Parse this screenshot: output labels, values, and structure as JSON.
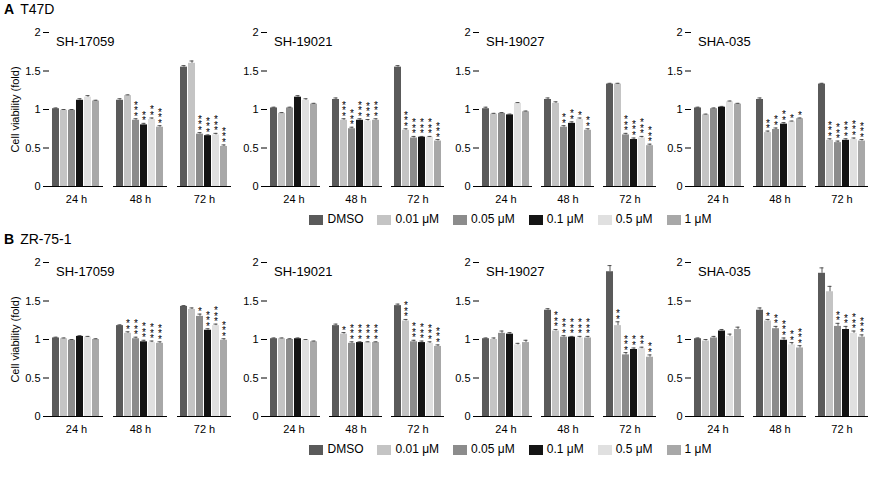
{
  "panels": [
    {
      "label": "A",
      "title": "T47D"
    },
    {
      "label": "B",
      "title": "ZR-75-1"
    }
  ],
  "chart_data": [
    {
      "type": "bar",
      "title": "SH-17059",
      "y_label": "Cell viability (fold)",
      "categories": [
        "24 h",
        "48 h",
        "72 h"
      ],
      "ylim": [
        0,
        2
      ],
      "yticks": [
        0,
        0.5,
        1,
        1.5,
        2
      ],
      "series": [
        {
          "name": "DMSO",
          "color": "#5a5a5a",
          "values": [
            1.01,
            1.12,
            1.55
          ],
          "errors": [
            0.01,
            0.02,
            0.02
          ],
          "significance": [
            null,
            null,
            null
          ]
        },
        {
          "name": "0.01 μM",
          "color": "#c4c4c4",
          "values": [
            0.99,
            1.18,
            1.6
          ],
          "errors": [
            0.01,
            0.01,
            0.03
          ],
          "significance": [
            null,
            null,
            null
          ]
        },
        {
          "name": "0.05 μM",
          "color": "#8c8c8c",
          "values": [
            0.99,
            0.86,
            0.68
          ],
          "errors": [
            0.01,
            0.02,
            0.02
          ],
          "significance": [
            null,
            "***",
            "***"
          ]
        },
        {
          "name": "0.1 μM",
          "color": "#141414",
          "values": [
            1.12,
            0.8,
            0.66
          ],
          "errors": [
            0.02,
            0.02,
            0.01
          ],
          "significance": [
            null,
            "**",
            "***"
          ]
        },
        {
          "name": "0.5 μM",
          "color": "#e0e0e0",
          "values": [
            1.16,
            0.87,
            0.67
          ],
          "errors": [
            0.02,
            0.02,
            0.02
          ],
          "significance": [
            null,
            "**",
            "***"
          ]
        },
        {
          "name": "1 μM",
          "color": "#a8a8a8",
          "values": [
            1.11,
            0.77,
            0.52
          ],
          "errors": [
            0.01,
            0.02,
            0.02
          ],
          "significance": [
            null,
            "***",
            "***"
          ]
        }
      ]
    },
    {
      "type": "bar",
      "title": "SH-19021",
      "categories": [
        "24 h",
        "48 h",
        "72 h"
      ],
      "ylim": [
        0,
        2
      ],
      "yticks": [
        0,
        0.5,
        1,
        1.5,
        2
      ],
      "series": [
        {
          "name": "DMSO",
          "color": "#5a5a5a",
          "values": [
            1.02,
            1.13,
            1.55
          ],
          "errors": [
            0.01,
            0.02,
            0.02
          ],
          "significance": [
            null,
            null,
            null
          ]
        },
        {
          "name": "0.01 μM",
          "color": "#c4c4c4",
          "values": [
            0.95,
            0.86,
            0.73
          ],
          "errors": [
            0.01,
            0.02,
            0.02
          ],
          "significance": [
            null,
            "***",
            "***"
          ]
        },
        {
          "name": "0.05 μM",
          "color": "#8c8c8c",
          "values": [
            1.02,
            0.75,
            0.63
          ],
          "errors": [
            0.01,
            0.02,
            0.02
          ],
          "significance": [
            null,
            "***",
            "***"
          ]
        },
        {
          "name": "0.1 μM",
          "color": "#141414",
          "values": [
            1.16,
            0.86,
            0.64
          ],
          "errors": [
            0.02,
            0.02,
            0.01
          ],
          "significance": [
            null,
            "***",
            "***"
          ]
        },
        {
          "name": "0.5 μM",
          "color": "#e0e0e0",
          "values": [
            1.12,
            0.85,
            0.64
          ],
          "errors": [
            0.02,
            0.02,
            0.01
          ],
          "significance": [
            null,
            "***",
            "***"
          ]
        },
        {
          "name": "1 μM",
          "color": "#a8a8a8",
          "values": [
            1.07,
            0.86,
            0.59
          ],
          "errors": [
            0.01,
            0.02,
            0.02
          ],
          "significance": [
            null,
            "***",
            "***"
          ]
        }
      ]
    },
    {
      "type": "bar",
      "title": "SH-19027",
      "categories": [
        "24 h",
        "48 h",
        "72 h"
      ],
      "ylim": [
        0,
        2
      ],
      "yticks": [
        0,
        0.5,
        1,
        1.5,
        2
      ],
      "series": [
        {
          "name": "DMSO",
          "color": "#5a5a5a",
          "values": [
            1.01,
            1.13,
            1.33
          ],
          "errors": [
            0.02,
            0.02,
            0.01
          ],
          "significance": [
            null,
            null,
            null
          ]
        },
        {
          "name": "0.01 μM",
          "color": "#c4c4c4",
          "values": [
            0.94,
            1.08,
            1.33
          ],
          "errors": [
            0.01,
            0.02,
            0.01
          ],
          "significance": [
            null,
            null,
            null
          ]
        },
        {
          "name": "0.05 μM",
          "color": "#8c8c8c",
          "values": [
            0.95,
            0.77,
            0.67
          ],
          "errors": [
            0.01,
            0.02,
            0.02
          ],
          "significance": [
            null,
            "**",
            "***"
          ]
        },
        {
          "name": "0.1 μM",
          "color": "#141414",
          "values": [
            0.93,
            0.82,
            0.61
          ],
          "errors": [
            0.01,
            0.02,
            0.02
          ],
          "significance": [
            null,
            "**",
            "***"
          ]
        },
        {
          "name": "0.5 μM",
          "color": "#e0e0e0",
          "values": [
            1.08,
            0.87,
            0.63
          ],
          "errors": [
            0.01,
            0.02,
            0.02
          ],
          "significance": [
            null,
            "*",
            "***"
          ]
        },
        {
          "name": "1 μM",
          "color": "#a8a8a8",
          "values": [
            0.97,
            0.73,
            0.53
          ],
          "errors": [
            0.01,
            0.02,
            0.02
          ],
          "significance": [
            null,
            "**",
            "***"
          ]
        }
      ]
    },
    {
      "type": "bar",
      "title": "SHA-035",
      "categories": [
        "24 h",
        "48 h",
        "72 h"
      ],
      "ylim": [
        0,
        2
      ],
      "yticks": [
        0,
        0.5,
        1,
        1.5,
        2
      ],
      "series": [
        {
          "name": "DMSO",
          "color": "#5a5a5a",
          "values": [
            1.02,
            1.13,
            1.33
          ],
          "errors": [
            0.01,
            0.02,
            0.01
          ],
          "significance": [
            null,
            null,
            null
          ]
        },
        {
          "name": "0.01 μM",
          "color": "#c4c4c4",
          "values": [
            0.93,
            0.7,
            0.6
          ],
          "errors": [
            0.01,
            0.02,
            0.02
          ],
          "significance": [
            null,
            "**",
            "***"
          ]
        },
        {
          "name": "0.05 μM",
          "color": "#8c8c8c",
          "values": [
            1.01,
            0.74,
            0.57
          ],
          "errors": [
            0.01,
            0.02,
            0.02
          ],
          "significance": [
            null,
            "**",
            "***"
          ]
        },
        {
          "name": "0.1 μM",
          "color": "#141414",
          "values": [
            1.03,
            0.81,
            0.6
          ],
          "errors": [
            0.01,
            0.02,
            0.02
          ],
          "significance": [
            null,
            "**",
            "***"
          ]
        },
        {
          "name": "0.5 μM",
          "color": "#e0e0e0",
          "values": [
            1.1,
            0.84,
            0.61
          ],
          "errors": [
            0.01,
            0.01,
            0.02
          ],
          "significance": [
            null,
            "*",
            "***"
          ]
        },
        {
          "name": "1 μM",
          "color": "#a8a8a8",
          "values": [
            1.07,
            0.88,
            0.59
          ],
          "errors": [
            0.01,
            0.01,
            0.02
          ],
          "significance": [
            null,
            "*",
            "***"
          ]
        }
      ]
    },
    {
      "type": "bar",
      "title": "SH-17059",
      "y_label": "Cell viability (fold)",
      "categories": [
        "24 h",
        "48 h",
        "72 h"
      ],
      "ylim": [
        0,
        2
      ],
      "yticks": [
        0,
        0.5,
        1,
        1.5,
        2
      ],
      "series": [
        {
          "name": "DMSO",
          "color": "#5a5a5a",
          "values": [
            1.02,
            1.18,
            1.43
          ],
          "errors": [
            0.01,
            0.01,
            0.01
          ],
          "significance": [
            null,
            null,
            null
          ]
        },
        {
          "name": "0.01 μM",
          "color": "#c4c4c4",
          "values": [
            1.01,
            1.08,
            1.39
          ],
          "errors": [
            0.01,
            0.02,
            0.02
          ],
          "significance": [
            null,
            "**",
            null
          ]
        },
        {
          "name": "0.05 μM",
          "color": "#8c8c8c",
          "values": [
            0.99,
            1.01,
            1.3
          ],
          "errors": [
            0.01,
            0.02,
            0.03
          ],
          "significance": [
            null,
            "***",
            "*"
          ]
        },
        {
          "name": "0.1 μM",
          "color": "#141414",
          "values": [
            1.04,
            0.97,
            1.12
          ],
          "errors": [
            0.01,
            0.02,
            0.02
          ],
          "significance": [
            null,
            "***",
            "***"
          ]
        },
        {
          "name": "0.5 μM",
          "color": "#e0e0e0",
          "values": [
            1.03,
            0.96,
            1.18
          ],
          "errors": [
            0.01,
            0.02,
            0.02
          ],
          "significance": [
            null,
            "***",
            "***"
          ]
        },
        {
          "name": "1 μM",
          "color": "#a8a8a8",
          "values": [
            1.0,
            0.95,
            0.99
          ],
          "errors": [
            0.01,
            0.02,
            0.02
          ],
          "significance": [
            null,
            "***",
            "***"
          ]
        }
      ]
    },
    {
      "type": "bar",
      "title": "SH-19021",
      "categories": [
        "24 h",
        "48 h",
        "72 h"
      ],
      "ylim": [
        0,
        2
      ],
      "yticks": [
        0,
        0.5,
        1,
        1.5,
        2
      ],
      "series": [
        {
          "name": "DMSO",
          "color": "#5a5a5a",
          "values": [
            1.01,
            1.18,
            1.44
          ],
          "errors": [
            0.01,
            0.02,
            0.02
          ],
          "significance": [
            null,
            null,
            null
          ]
        },
        {
          "name": "0.01 μM",
          "color": "#c4c4c4",
          "values": [
            1.01,
            1.07,
            1.24
          ],
          "errors": [
            0.01,
            0.02,
            0.02
          ],
          "significance": [
            null,
            "*",
            "***"
          ]
        },
        {
          "name": "0.05 μM",
          "color": "#8c8c8c",
          "values": [
            1.0,
            0.95,
            0.97
          ],
          "errors": [
            0.01,
            0.02,
            0.02
          ],
          "significance": [
            null,
            "***",
            "***"
          ]
        },
        {
          "name": "0.1 μM",
          "color": "#141414",
          "values": [
            1.01,
            0.96,
            0.96
          ],
          "errors": [
            0.01,
            0.01,
            0.02
          ],
          "significance": [
            null,
            "***",
            "***"
          ]
        },
        {
          "name": "0.5 μM",
          "color": "#e0e0e0",
          "values": [
            0.99,
            0.96,
            0.95
          ],
          "errors": [
            0.01,
            0.01,
            0.02
          ],
          "significance": [
            null,
            "***",
            "***"
          ]
        },
        {
          "name": "1 μM",
          "color": "#a8a8a8",
          "values": [
            0.97,
            0.96,
            0.91
          ],
          "errors": [
            0.01,
            0.01,
            0.02
          ],
          "significance": [
            null,
            "***",
            "***"
          ]
        }
      ]
    },
    {
      "type": "bar",
      "title": "SH-19027",
      "categories": [
        "24 h",
        "48 h",
        "72 h"
      ],
      "ylim": [
        0,
        2
      ],
      "yticks": [
        0,
        0.5,
        1,
        1.5,
        2
      ],
      "series": [
        {
          "name": "DMSO",
          "color": "#5a5a5a",
          "values": [
            1.01,
            1.38,
            1.88
          ],
          "errors": [
            0.01,
            0.02,
            0.08
          ],
          "significance": [
            null,
            null,
            null
          ]
        },
        {
          "name": "0.01 μM",
          "color": "#c4c4c4",
          "values": [
            1.0,
            1.11,
            1.18
          ],
          "errors": [
            0.02,
            0.02,
            0.05
          ],
          "significance": [
            null,
            "***",
            "**"
          ]
        },
        {
          "name": "0.05 μM",
          "color": "#8c8c8c",
          "values": [
            1.08,
            1.03,
            0.8
          ],
          "errors": [
            0.03,
            0.02,
            0.03
          ],
          "significance": [
            null,
            "***",
            "***"
          ]
        },
        {
          "name": "0.1 μM",
          "color": "#141414",
          "values": [
            1.07,
            1.03,
            0.87
          ],
          "errors": [
            0.02,
            0.01,
            0.02
          ],
          "significance": [
            null,
            "***",
            "**"
          ]
        },
        {
          "name": "0.5 μM",
          "color": "#e0e0e0",
          "values": [
            0.93,
            1.02,
            0.88
          ],
          "errors": [
            0.02,
            0.02,
            0.02
          ],
          "significance": [
            null,
            "***",
            "**"
          ]
        },
        {
          "name": "1 μM",
          "color": "#a8a8a8",
          "values": [
            0.96,
            1.02,
            0.77
          ],
          "errors": [
            0.03,
            0.02,
            0.03
          ],
          "significance": [
            null,
            "***",
            "**"
          ]
        }
      ]
    },
    {
      "type": "bar",
      "title": "SHA-035",
      "categories": [
        "24 h",
        "48 h",
        "72 h"
      ],
      "ylim": [
        0,
        2
      ],
      "yticks": [
        0,
        0.5,
        1,
        1.5,
        2
      ],
      "series": [
        {
          "name": "DMSO",
          "color": "#5a5a5a",
          "values": [
            1.01,
            1.38,
            1.86
          ],
          "errors": [
            0.01,
            0.03,
            0.07
          ],
          "significance": [
            null,
            null,
            null
          ]
        },
        {
          "name": "0.01 μM",
          "color": "#c4c4c4",
          "values": [
            0.98,
            1.24,
            1.62
          ],
          "errors": [
            0.02,
            0.02,
            0.07
          ],
          "significance": [
            null,
            "*",
            null
          ]
        },
        {
          "name": "0.05 μM",
          "color": "#8c8c8c",
          "values": [
            1.02,
            1.14,
            1.17
          ],
          "errors": [
            0.02,
            0.03,
            0.04
          ],
          "significance": [
            null,
            "**",
            "**"
          ]
        },
        {
          "name": "0.1 μM",
          "color": "#141414",
          "values": [
            1.11,
            0.99,
            1.13
          ],
          "errors": [
            0.02,
            0.03,
            0.04
          ],
          "significance": [
            null,
            "***",
            "**"
          ]
        },
        {
          "name": "0.5 μM",
          "color": "#e0e0e0",
          "values": [
            1.04,
            0.93,
            1.08
          ],
          "errors": [
            0.03,
            0.03,
            0.03
          ],
          "significance": [
            null,
            "**",
            "***"
          ]
        },
        {
          "name": "1 μM",
          "color": "#a8a8a8",
          "values": [
            1.13,
            0.89,
            1.03
          ],
          "errors": [
            0.03,
            0.03,
            0.03
          ],
          "significance": [
            null,
            "***",
            "***"
          ]
        }
      ]
    }
  ]
}
